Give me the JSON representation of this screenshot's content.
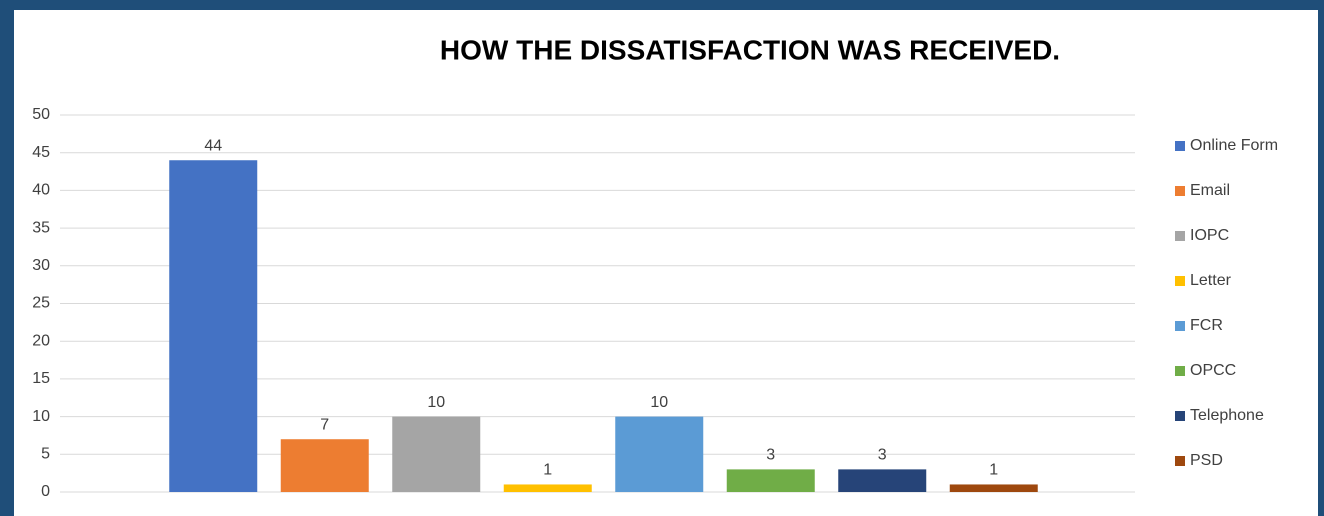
{
  "chart_data": {
    "type": "bar",
    "title": "HOW THE DISSATISFACTION WAS RECEIVED.",
    "series": [
      {
        "name": "Online Form",
        "color": "#4472c4",
        "values": [
          44
        ]
      },
      {
        "name": "Email",
        "color": "#ed7d31",
        "values": [
          7
        ]
      },
      {
        "name": "IOPC",
        "color": "#a5a5a5",
        "values": [
          10
        ]
      },
      {
        "name": "Letter",
        "color": "#ffc000",
        "values": [
          1
        ]
      },
      {
        "name": "FCR",
        "color": "#5b9bd5",
        "values": [
          10
        ]
      },
      {
        "name": "OPCC",
        "color": "#70ad47",
        "values": [
          3
        ]
      },
      {
        "name": "Telephone",
        "color": "#264478",
        "values": [
          3
        ]
      },
      {
        "name": "PSD",
        "color": "#9e480e",
        "values": [
          1
        ]
      }
    ],
    "ylim": [
      0,
      50
    ],
    "yticks": [
      0,
      5,
      10,
      15,
      20,
      25,
      30,
      35,
      40,
      45,
      50
    ],
    "grid": true,
    "legend": "right"
  }
}
